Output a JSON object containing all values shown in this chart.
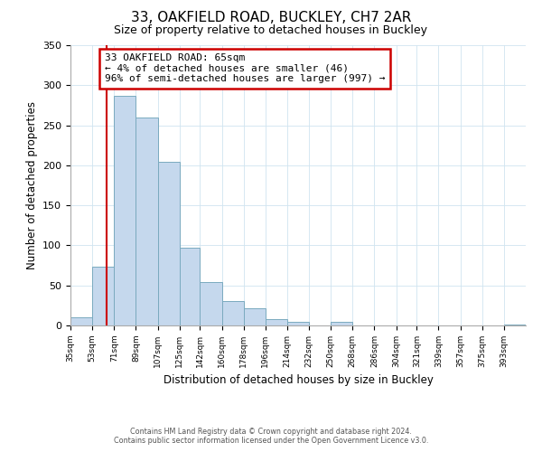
{
  "title": "33, OAKFIELD ROAD, BUCKLEY, CH7 2AR",
  "subtitle": "Size of property relative to detached houses in Buckley",
  "xlabel": "Distribution of detached houses by size in Buckley",
  "ylabel": "Number of detached properties",
  "bin_labels": [
    "35sqm",
    "53sqm",
    "71sqm",
    "89sqm",
    "107sqm",
    "125sqm",
    "142sqm",
    "160sqm",
    "178sqm",
    "196sqm",
    "214sqm",
    "232sqm",
    "250sqm",
    "268sqm",
    "286sqm",
    "304sqm",
    "321sqm",
    "339sqm",
    "357sqm",
    "375sqm",
    "393sqm"
  ],
  "bar_heights": [
    10,
    73,
    287,
    260,
    204,
    97,
    54,
    31,
    21,
    8,
    5,
    0,
    5,
    0,
    0,
    0,
    0,
    0,
    0,
    0,
    1
  ],
  "bar_color": "#c5d8ed",
  "bar_edge_color": "#7aaabf",
  "red_line_color": "#cc0000",
  "annotation_title": "33 OAKFIELD ROAD: 65sqm",
  "annotation_line1": "← 4% of detached houses are smaller (46)",
  "annotation_line2": "96% of semi-detached houses are larger (997) →",
  "annotation_box_color": "#ffffff",
  "annotation_box_edge": "#cc0000",
  "ylim": [
    0,
    350
  ],
  "grid_color": "#d0e4f0",
  "footnote1": "Contains HM Land Registry data © Crown copyright and database right 2024.",
  "footnote2": "Contains public sector information licensed under the Open Government Licence v3.0."
}
